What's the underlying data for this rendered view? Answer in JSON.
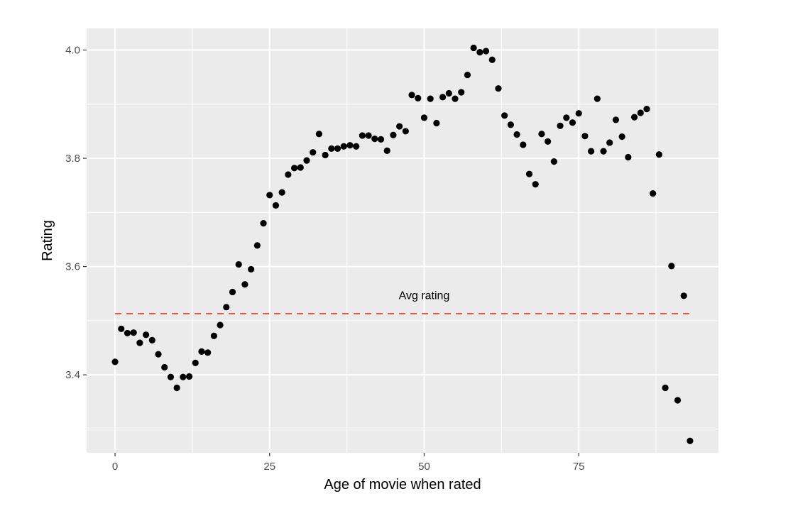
{
  "chart_data": {
    "type": "scatter",
    "title": "",
    "xlabel": "Age of movie when rated",
    "ylabel": "Rating",
    "xlim": [
      -4.6,
      97.6
    ],
    "ylim": [
      3.256,
      4.04
    ],
    "x_ticks": [
      0,
      25,
      50,
      75
    ],
    "x_tick_labels": [
      "0",
      "25",
      "50",
      "75"
    ],
    "y_ticks": [
      3.4,
      3.6,
      3.8,
      4.0
    ],
    "y_tick_labels": [
      "3.4",
      "3.6",
      "3.8",
      "4.0"
    ],
    "grid": true,
    "legend": "none",
    "colors": {
      "panel": "#ebebeb",
      "grid": "#ffffff",
      "point": "#000000",
      "reference_line": "#e8544a"
    },
    "points": [
      {
        "x": 0,
        "y": 3.424
      },
      {
        "x": 1,
        "y": 3.485
      },
      {
        "x": 2,
        "y": 3.477
      },
      {
        "x": 3,
        "y": 3.478
      },
      {
        "x": 4,
        "y": 3.459
      },
      {
        "x": 5,
        "y": 3.474
      },
      {
        "x": 6,
        "y": 3.464
      },
      {
        "x": 7,
        "y": 3.438
      },
      {
        "x": 8,
        "y": 3.414
      },
      {
        "x": 9,
        "y": 3.396
      },
      {
        "x": 10,
        "y": 3.376
      },
      {
        "x": 11,
        "y": 3.396
      },
      {
        "x": 12,
        "y": 3.397
      },
      {
        "x": 13,
        "y": 3.422
      },
      {
        "x": 14,
        "y": 3.443
      },
      {
        "x": 15,
        "y": 3.441
      },
      {
        "x": 16,
        "y": 3.472
      },
      {
        "x": 17,
        "y": 3.492
      },
      {
        "x": 18,
        "y": 3.525
      },
      {
        "x": 19,
        "y": 3.553
      },
      {
        "x": 20,
        "y": 3.604
      },
      {
        "x": 21,
        "y": 3.567
      },
      {
        "x": 22,
        "y": 3.595
      },
      {
        "x": 23,
        "y": 3.639
      },
      {
        "x": 24,
        "y": 3.68
      },
      {
        "x": 25,
        "y": 3.732
      },
      {
        "x": 26,
        "y": 3.713
      },
      {
        "x": 27,
        "y": 3.737
      },
      {
        "x": 28,
        "y": 3.77
      },
      {
        "x": 29,
        "y": 3.782
      },
      {
        "x": 30,
        "y": 3.783
      },
      {
        "x": 31,
        "y": 3.796
      },
      {
        "x": 32,
        "y": 3.811
      },
      {
        "x": 33,
        "y": 3.845
      },
      {
        "x": 34,
        "y": 3.806
      },
      {
        "x": 35,
        "y": 3.818
      },
      {
        "x": 36,
        "y": 3.818
      },
      {
        "x": 37,
        "y": 3.822
      },
      {
        "x": 38,
        "y": 3.824
      },
      {
        "x": 39,
        "y": 3.822
      },
      {
        "x": 40,
        "y": 3.842
      },
      {
        "x": 41,
        "y": 3.842
      },
      {
        "x": 42,
        "y": 3.836
      },
      {
        "x": 43,
        "y": 3.835
      },
      {
        "x": 44,
        "y": 3.814
      },
      {
        "x": 45,
        "y": 3.843
      },
      {
        "x": 46,
        "y": 3.859
      },
      {
        "x": 47,
        "y": 3.85
      },
      {
        "x": 48,
        "y": 3.917
      },
      {
        "x": 49,
        "y": 3.911
      },
      {
        "x": 50,
        "y": 3.875
      },
      {
        "x": 51,
        "y": 3.91
      },
      {
        "x": 52,
        "y": 3.865
      },
      {
        "x": 53,
        "y": 3.913
      },
      {
        "x": 54,
        "y": 3.92
      },
      {
        "x": 55,
        "y": 3.91
      },
      {
        "x": 56,
        "y": 3.922
      },
      {
        "x": 57,
        "y": 3.954
      },
      {
        "x": 58,
        "y": 4.004
      },
      {
        "x": 59,
        "y": 3.996
      },
      {
        "x": 60,
        "y": 3.998
      },
      {
        "x": 61,
        "y": 3.982
      },
      {
        "x": 62,
        "y": 3.929
      },
      {
        "x": 63,
        "y": 3.879
      },
      {
        "x": 64,
        "y": 3.862
      },
      {
        "x": 65,
        "y": 3.844
      },
      {
        "x": 66,
        "y": 3.825
      },
      {
        "x": 67,
        "y": 3.771
      },
      {
        "x": 68,
        "y": 3.752
      },
      {
        "x": 69,
        "y": 3.845
      },
      {
        "x": 70,
        "y": 3.831
      },
      {
        "x": 71,
        "y": 3.794
      },
      {
        "x": 72,
        "y": 3.86
      },
      {
        "x": 73,
        "y": 3.875
      },
      {
        "x": 74,
        "y": 3.866
      },
      {
        "x": 75,
        "y": 3.883
      },
      {
        "x": 76,
        "y": 3.841
      },
      {
        "x": 77,
        "y": 3.813
      },
      {
        "x": 78,
        "y": 3.91
      },
      {
        "x": 79,
        "y": 3.813
      },
      {
        "x": 80,
        "y": 3.829
      },
      {
        "x": 81,
        "y": 3.871
      },
      {
        "x": 82,
        "y": 3.84
      },
      {
        "x": 83,
        "y": 3.802
      },
      {
        "x": 84,
        "y": 3.876
      },
      {
        "x": 85,
        "y": 3.884
      },
      {
        "x": 86,
        "y": 3.891
      },
      {
        "x": 87,
        "y": 3.735
      },
      {
        "x": 88,
        "y": 3.807
      },
      {
        "x": 89,
        "y": 3.376
      },
      {
        "x": 90,
        "y": 3.601
      },
      {
        "x": 91,
        "y": 3.353
      },
      {
        "x": 92,
        "y": 3.546
      },
      {
        "x": 93,
        "y": 3.278
      }
    ],
    "reference_line": {
      "label": "Avg rating",
      "y": 3.513,
      "x_start": 0,
      "x_end": 93,
      "style": "dashed"
    },
    "annotation": {
      "text": "Avg rating",
      "x": 50,
      "y": 3.548
    }
  }
}
